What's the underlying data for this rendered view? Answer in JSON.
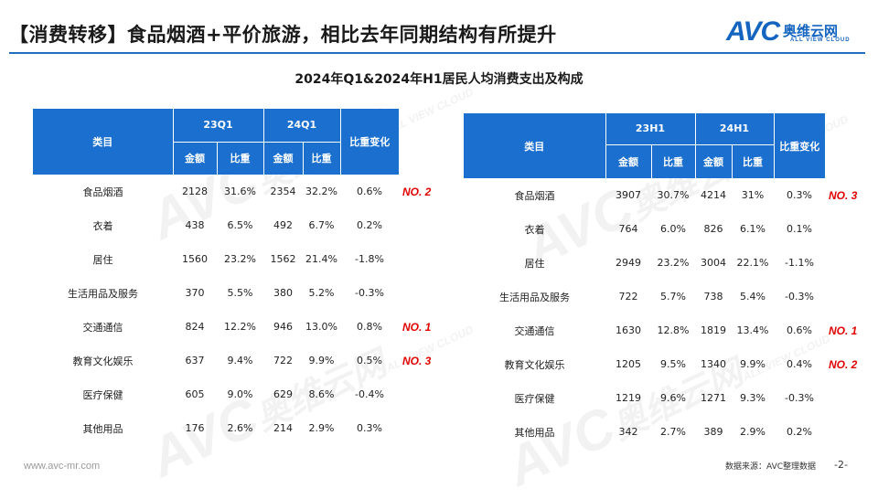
{
  "header": {
    "title": "【消费转移】食品烟酒+平价旅游，相比去年同期结构有所提升",
    "logo_main": "AVC",
    "logo_cn": "奥维云网",
    "logo_en": "ALL VIEW CLOUD"
  },
  "subtitle": "2024年Q1&2024年H1居民人均消费支出及构成",
  "watermark": {
    "main": "AVC",
    "cn": "奥维云网",
    "en": "ALL VIEW CLOUD"
  },
  "table_left": {
    "category_header": "类目",
    "period1": "23Q1",
    "period2": "24Q1",
    "change_header": "比重变化",
    "amount_header": "金额",
    "share_header": "比重",
    "rows": [
      {
        "cat": "食品烟酒",
        "a1": "2128",
        "s1": "31.6%",
        "a2": "2354",
        "s2": "32.2%",
        "chg": "0.6%",
        "rank": "NO. 2"
      },
      {
        "cat": "衣着",
        "a1": "438",
        "s1": "6.5%",
        "a2": "492",
        "s2": "6.7%",
        "chg": "0.2%",
        "rank": ""
      },
      {
        "cat": "居住",
        "a1": "1560",
        "s1": "23.2%",
        "a2": "1562",
        "s2": "21.4%",
        "chg": "-1.8%",
        "rank": ""
      },
      {
        "cat": "生活用品及服务",
        "a1": "370",
        "s1": "5.5%",
        "a2": "380",
        "s2": "5.2%",
        "chg": "-0.3%",
        "rank": ""
      },
      {
        "cat": "交通通信",
        "a1": "824",
        "s1": "12.2%",
        "a2": "946",
        "s2": "13.0%",
        "chg": "0.8%",
        "rank": "NO. 1"
      },
      {
        "cat": "教育文化娱乐",
        "a1": "637",
        "s1": "9.4%",
        "a2": "722",
        "s2": "9.9%",
        "chg": "0.5%",
        "rank": "NO. 3"
      },
      {
        "cat": "医疗保健",
        "a1": "605",
        "s1": "9.0%",
        "a2": "629",
        "s2": "8.6%",
        "chg": "-0.4%",
        "rank": ""
      },
      {
        "cat": "其他用品",
        "a1": "176",
        "s1": "2.6%",
        "a2": "214",
        "s2": "2.9%",
        "chg": "0.3%",
        "rank": ""
      }
    ]
  },
  "table_right": {
    "category_header": "类目",
    "period1": "23H1",
    "period2": "24H1",
    "change_header": "比重变化",
    "amount_header": "金额",
    "share_header": "比重",
    "rows": [
      {
        "cat": "食品烟酒",
        "a1": "3907",
        "s1": "30.7%",
        "a2": "4214",
        "s2": "31%",
        "chg": "0.3%",
        "rank": "NO. 3"
      },
      {
        "cat": "衣着",
        "a1": "764",
        "s1": "6.0%",
        "a2": "826",
        "s2": "6.1%",
        "chg": "0.1%",
        "rank": ""
      },
      {
        "cat": "居住",
        "a1": "2949",
        "s1": "23.2%",
        "a2": "3004",
        "s2": "22.1%",
        "chg": "-1.1%",
        "rank": ""
      },
      {
        "cat": "生活用品及服务",
        "a1": "722",
        "s1": "5.7%",
        "a2": "738",
        "s2": "5.4%",
        "chg": "-0.3%",
        "rank": ""
      },
      {
        "cat": "交通通信",
        "a1": "1630",
        "s1": "12.8%",
        "a2": "1819",
        "s2": "13.4%",
        "chg": "0.6%",
        "rank": "NO. 1"
      },
      {
        "cat": "教育文化娱乐",
        "a1": "1205",
        "s1": "9.5%",
        "a2": "1340",
        "s2": "9.9%",
        "chg": "0.4%",
        "rank": "NO. 2"
      },
      {
        "cat": "医疗保健",
        "a1": "1219",
        "s1": "9.6%",
        "a2": "1271",
        "s2": "9.3%",
        "chg": "-0.3%",
        "rank": ""
      },
      {
        "cat": "其他用品",
        "a1": "342",
        "s1": "2.7%",
        "a2": "389",
        "s2": "2.9%",
        "chg": "0.2%",
        "rank": ""
      }
    ]
  },
  "footer": {
    "url": "www.avc-mr.com",
    "source": "数据来源：AVC整理数据",
    "page": "-2-"
  }
}
